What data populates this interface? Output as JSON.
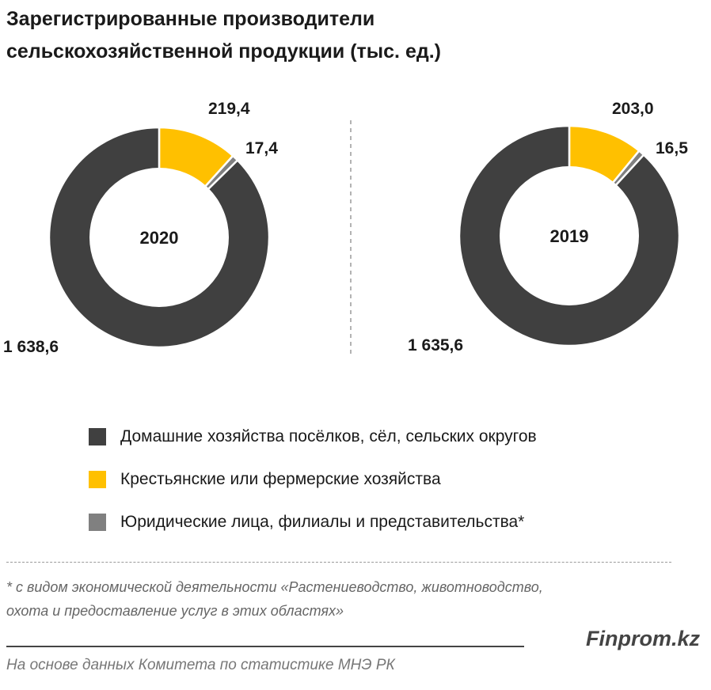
{
  "title": {
    "line1": "Зарегистрированные производители",
    "line2": "сельскохозяйственной продукции (тыс. ед.)"
  },
  "colors": {
    "households": "#404040",
    "farms": "#FFC000",
    "legal": "#808080",
    "separator": "#ffffff"
  },
  "chart_data": [
    {
      "type": "pie",
      "variant": "donut",
      "center_label": "2020",
      "title": "Зарегистрированные производители сельскохозяйственной продукции (тыс. ед.)",
      "slices": [
        {
          "name": "Домашние хозяйства посёлков, сёл, сельских округов",
          "value": 1638.6,
          "label": "1 638,6"
        },
        {
          "name": "Крестьянские или фермерские хозяйства",
          "value": 219.4,
          "label": "219,4"
        },
        {
          "name": "Юридические лица, филиалы и представительства*",
          "value": 17.4,
          "label": "17,4"
        }
      ]
    },
    {
      "type": "pie",
      "variant": "donut",
      "center_label": "2019",
      "title": "Зарегистрированные производители сельскохозяйственной продукции (тыс. ед.)",
      "slices": [
        {
          "name": "Домашние хозяйства посёлков, сёл, сельских округов",
          "value": 1635.6,
          "label": "1 635,6"
        },
        {
          "name": "Крестьянские или фермерские хозяйства",
          "value": 203.0,
          "label": "203,0"
        },
        {
          "name": "Юридические лица, филиалы и представительства*",
          "value": 16.5,
          "label": "16,5"
        }
      ]
    }
  ],
  "legend": [
    {
      "label": "Домашние хозяйства посёлков, сёл, сельских округов",
      "color": "#404040"
    },
    {
      "label": "Крестьянские или фермерские хозяйства",
      "color": "#FFC000"
    },
    {
      "label": "Юридические лица, филиалы и представительства*",
      "color": "#808080"
    }
  ],
  "footnote": {
    "line1": "* с видом экономической деятельности «Растениеводство, животноводство,",
    "line2": "охота и предоставление услуг в этих областях»"
  },
  "brand": "Finprom.kz",
  "source": "На основе данных  Комитета по статистике МНЭ РК"
}
